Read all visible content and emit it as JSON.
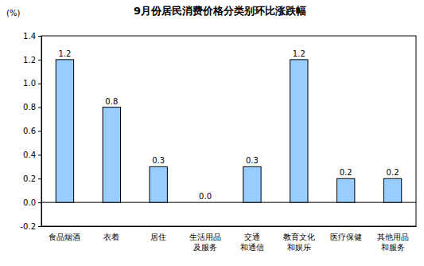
{
  "chart_data": {
    "type": "bar",
    "title": "9月份居民消费价格分类别环比涨跌幅",
    "y_label": "(%)",
    "categories": [
      "食品烟酒",
      "衣着",
      "居住",
      "生活用品\n及服务",
      "交通\n和通信",
      "教育文化\n和娱乐",
      "医疗保健",
      "其他用品\n和服务"
    ],
    "values": [
      1.2,
      0.8,
      0.3,
      0,
      0.3,
      1.2,
      0.2,
      0.2
    ],
    "value_labels": [
      "1.2",
      "0.8",
      "0.3",
      "0.0",
      "0.3",
      "1.2",
      "0.2",
      "0.2"
    ],
    "color": "#99ccff",
    "ylim": [
      -0.2,
      1.4
    ],
    "yticks": [
      -0.2,
      {
        "value": 0,
        "label": "0.0"
      },
      0.2,
      0.4,
      0.6,
      0.8,
      {
        "value": 1,
        "label": "1.0"
      },
      1.2,
      1.4
    ],
    "grid": false,
    "data_labels": true
  }
}
